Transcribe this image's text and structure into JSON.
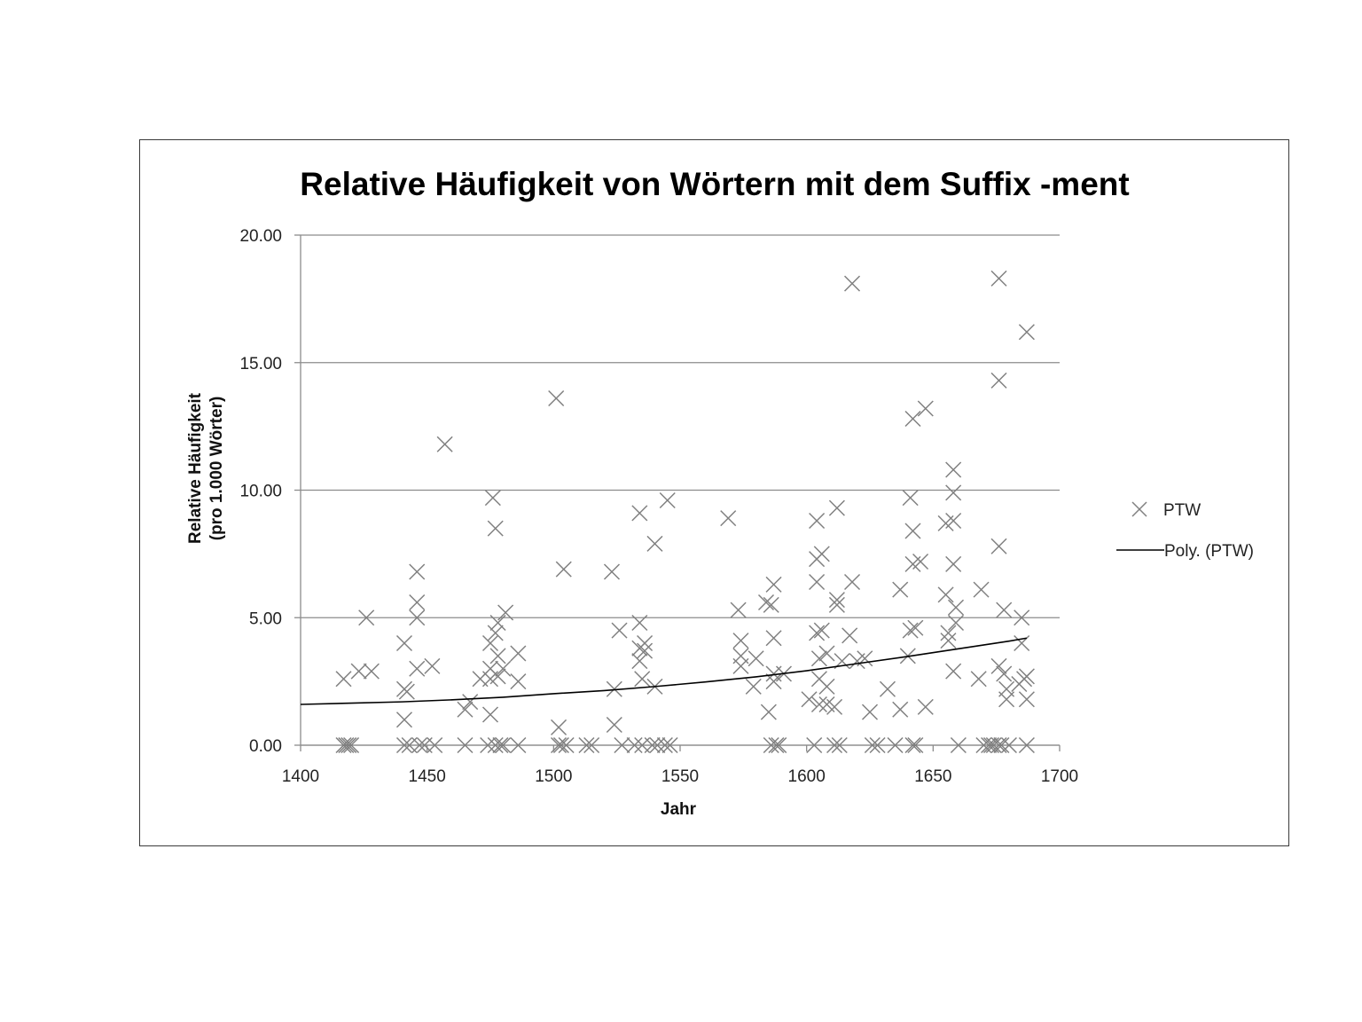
{
  "chart_data": {
    "type": "scatter",
    "title": "Relative Häufigkeit von Wörtern mit dem Suffix -ment",
    "xlabel": "Jahr",
    "ylabel": [
      "Relative  Häufigkeit",
      "(pro 1.000 Wörter)"
    ],
    "xlim": [
      1400,
      1700
    ],
    "ylim": [
      0,
      20
    ],
    "xticks": [
      "1400",
      "1450",
      "1500",
      "1550",
      "1600",
      "1650",
      "1700"
    ],
    "yticks": [
      "0.00",
      "5.00",
      "10.00",
      "15.00",
      "20.00"
    ],
    "grid": "horizontal",
    "legend_position": "right",
    "legend": [
      "PTW",
      "Poly. (PTW)"
    ],
    "marker_color": "#808080",
    "trend_color": "#000000",
    "series": [
      {
        "name": "PTW",
        "points": [
          [
            1417,
            2.6
          ],
          [
            1417,
            0
          ],
          [
            1418,
            0
          ],
          [
            1419,
            0
          ],
          [
            1420,
            0
          ],
          [
            1423,
            2.9
          ],
          [
            1426,
            5.0
          ],
          [
            1428,
            2.9
          ],
          [
            1441,
            4.0
          ],
          [
            1441,
            2.2
          ],
          [
            1441,
            1.0
          ],
          [
            1441,
            0
          ],
          [
            1442,
            2.1
          ],
          [
            1443,
            0
          ],
          [
            1446,
            6.8
          ],
          [
            1446,
            5.6
          ],
          [
            1446,
            5.0
          ],
          [
            1446,
            3.0
          ],
          [
            1447,
            0
          ],
          [
            1449,
            0
          ],
          [
            1452,
            3.1
          ],
          [
            1453,
            0
          ],
          [
            1457,
            11.8
          ],
          [
            1465,
            1.4
          ],
          [
            1465,
            0
          ],
          [
            1467,
            1.7
          ],
          [
            1471,
            2.6
          ],
          [
            1474,
            0
          ],
          [
            1475,
            4.0
          ],
          [
            1475,
            3.0
          ],
          [
            1475,
            2.6
          ],
          [
            1475,
            1.2
          ],
          [
            1476,
            9.7
          ],
          [
            1477,
            8.5
          ],
          [
            1477,
            4.4
          ],
          [
            1477,
            0
          ],
          [
            1478,
            4.8
          ],
          [
            1478,
            3.5
          ],
          [
            1478,
            2.7
          ],
          [
            1479,
            0
          ],
          [
            1480,
            3.0
          ],
          [
            1480,
            0
          ],
          [
            1481,
            5.2
          ],
          [
            1486,
            3.6
          ],
          [
            1486,
            2.5
          ],
          [
            1486,
            0
          ],
          [
            1501,
            13.6
          ],
          [
            1502,
            0.7
          ],
          [
            1502,
            0
          ],
          [
            1503,
            0
          ],
          [
            1504,
            6.9
          ],
          [
            1505,
            0
          ],
          [
            1513,
            0
          ],
          [
            1515,
            0
          ],
          [
            1523,
            6.8
          ],
          [
            1524,
            2.2
          ],
          [
            1524,
            0.8
          ],
          [
            1526,
            4.5
          ],
          [
            1527,
            0
          ],
          [
            1532,
            0
          ],
          [
            1534,
            9.1
          ],
          [
            1534,
            4.8
          ],
          [
            1534,
            3.8
          ],
          [
            1534,
            3.3
          ],
          [
            1535,
            2.6
          ],
          [
            1535,
            0
          ],
          [
            1536,
            4.0
          ],
          [
            1536,
            3.7
          ],
          [
            1539,
            0
          ],
          [
            1540,
            7.9
          ],
          [
            1540,
            2.3
          ],
          [
            1541,
            0
          ],
          [
            1544,
            0
          ],
          [
            1545,
            9.6
          ],
          [
            1546,
            0
          ],
          [
            1569,
            8.9
          ],
          [
            1573,
            5.3
          ],
          [
            1574,
            4.1
          ],
          [
            1574,
            3.5
          ],
          [
            1574,
            3.1
          ],
          [
            1579,
            2.3
          ],
          [
            1580,
            3.4
          ],
          [
            1584,
            5.6
          ],
          [
            1585,
            1.3
          ],
          [
            1586,
            5.5
          ],
          [
            1586,
            0
          ],
          [
            1587,
            6.3
          ],
          [
            1587,
            4.2
          ],
          [
            1587,
            2.8
          ],
          [
            1587,
            2.5
          ],
          [
            1588,
            0
          ],
          [
            1589,
            0
          ],
          [
            1591,
            2.8
          ],
          [
            1601,
            1.8
          ],
          [
            1603,
            0
          ],
          [
            1604,
            8.8
          ],
          [
            1604,
            7.3
          ],
          [
            1604,
            6.4
          ],
          [
            1604,
            4.4
          ],
          [
            1605,
            3.4
          ],
          [
            1605,
            2.6
          ],
          [
            1605,
            1.6
          ],
          [
            1606,
            7.5
          ],
          [
            1606,
            4.5
          ],
          [
            1608,
            3.6
          ],
          [
            1608,
            2.3
          ],
          [
            1608,
            1.6
          ],
          [
            1611,
            1.5
          ],
          [
            1611,
            0
          ],
          [
            1612,
            9.3
          ],
          [
            1612,
            5.7
          ],
          [
            1612,
            5.5
          ],
          [
            1613,
            0
          ],
          [
            1614,
            3.3
          ],
          [
            1617,
            4.3
          ],
          [
            1618,
            6.4
          ],
          [
            1618,
            18.1
          ],
          [
            1620,
            3.3
          ],
          [
            1623,
            3.4
          ],
          [
            1625,
            1.3
          ],
          [
            1626,
            0
          ],
          [
            1628,
            0
          ],
          [
            1632,
            2.2
          ],
          [
            1635,
            0
          ],
          [
            1637,
            6.1
          ],
          [
            1637,
            1.4
          ],
          [
            1640,
            3.5
          ],
          [
            1641,
            9.7
          ],
          [
            1641,
            4.5
          ],
          [
            1642,
            12.8
          ],
          [
            1642,
            8.4
          ],
          [
            1642,
            7.1
          ],
          [
            1642,
            0
          ],
          [
            1643,
            0
          ],
          [
            1643,
            4.6
          ],
          [
            1645,
            7.2
          ],
          [
            1647,
            13.2
          ],
          [
            1647,
            1.5
          ],
          [
            1655,
            8.7
          ],
          [
            1655,
            5.9
          ],
          [
            1656,
            4.4
          ],
          [
            1656,
            4.1
          ],
          [
            1658,
            10.8
          ],
          [
            1658,
            9.9
          ],
          [
            1658,
            8.8
          ],
          [
            1658,
            7.1
          ],
          [
            1658,
            2.9
          ],
          [
            1659,
            5.4
          ],
          [
            1659,
            4.8
          ],
          [
            1660,
            0
          ],
          [
            1668,
            2.6
          ],
          [
            1669,
            6.1
          ],
          [
            1670,
            0
          ],
          [
            1672,
            0
          ],
          [
            1673,
            0
          ],
          [
            1674,
            0
          ],
          [
            1676,
            18.3
          ],
          [
            1676,
            14.3
          ],
          [
            1676,
            7.8
          ],
          [
            1676,
            3.1
          ],
          [
            1676,
            0
          ],
          [
            1677,
            0
          ],
          [
            1678,
            5.3
          ],
          [
            1678,
            2.8
          ],
          [
            1679,
            2.2
          ],
          [
            1679,
            1.8
          ],
          [
            1680,
            0
          ],
          [
            1684,
            2.4
          ],
          [
            1685,
            5.0
          ],
          [
            1685,
            4.0
          ],
          [
            1686,
            2.6
          ],
          [
            1687,
            16.2
          ],
          [
            1687,
            2.7
          ],
          [
            1687,
            1.8
          ],
          [
            1687,
            0
          ]
        ]
      },
      {
        "name": "Poly. (PTW)",
        "points": [
          [
            1400,
            1.6
          ],
          [
            1420,
            1.65
          ],
          [
            1440,
            1.7
          ],
          [
            1460,
            1.78
          ],
          [
            1480,
            1.88
          ],
          [
            1500,
            2.02
          ],
          [
            1520,
            2.14
          ],
          [
            1540,
            2.3
          ],
          [
            1560,
            2.48
          ],
          [
            1580,
            2.68
          ],
          [
            1600,
            2.92
          ],
          [
            1620,
            3.2
          ],
          [
            1640,
            3.48
          ],
          [
            1660,
            3.78
          ],
          [
            1680,
            4.08
          ],
          [
            1687,
            4.2
          ]
        ]
      }
    ]
  }
}
